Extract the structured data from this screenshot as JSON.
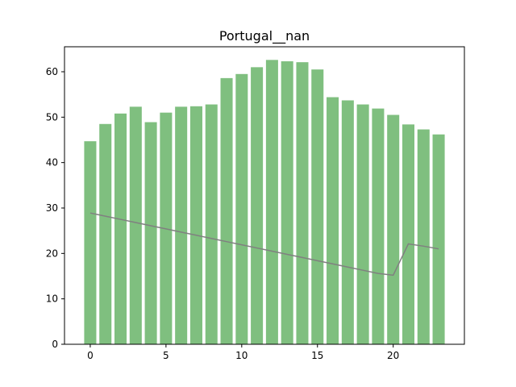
{
  "chart_data": {
    "type": "bar",
    "title": "Portugal__nan",
    "xlabel": "",
    "ylabel": "",
    "x": [
      0,
      1,
      2,
      3,
      4,
      5,
      6,
      7,
      8,
      9,
      10,
      11,
      12,
      13,
      14,
      15,
      16,
      17,
      18,
      19,
      20,
      21,
      22,
      23
    ],
    "xlim": [
      -1.7,
      24.7
    ],
    "ylim": [
      0,
      65.5
    ],
    "xticks": [
      0,
      5,
      10,
      15,
      20
    ],
    "yticks": [
      0,
      10,
      20,
      30,
      40,
      50,
      60
    ],
    "grid": false,
    "series": [
      {
        "type": "bar",
        "color": "#7fbf7f",
        "values": [
          44.7,
          48.5,
          50.8,
          52.3,
          48.9,
          51.0,
          52.3,
          52.4,
          52.8,
          58.6,
          59.5,
          61.0,
          62.6,
          62.3,
          62.1,
          60.5,
          54.4,
          53.7,
          52.8,
          51.9,
          50.5,
          48.4,
          47.3,
          46.2
        ]
      },
      {
        "type": "line",
        "color": "#808080",
        "values": [
          28.9,
          28.2,
          27.5,
          26.8,
          26.1,
          25.4,
          24.7,
          24.0,
          23.3,
          22.6,
          21.9,
          21.2,
          20.5,
          19.8,
          19.1,
          18.4,
          17.7,
          17.0,
          16.3,
          15.6,
          15.2,
          22.1,
          21.6,
          21.0
        ]
      }
    ]
  }
}
